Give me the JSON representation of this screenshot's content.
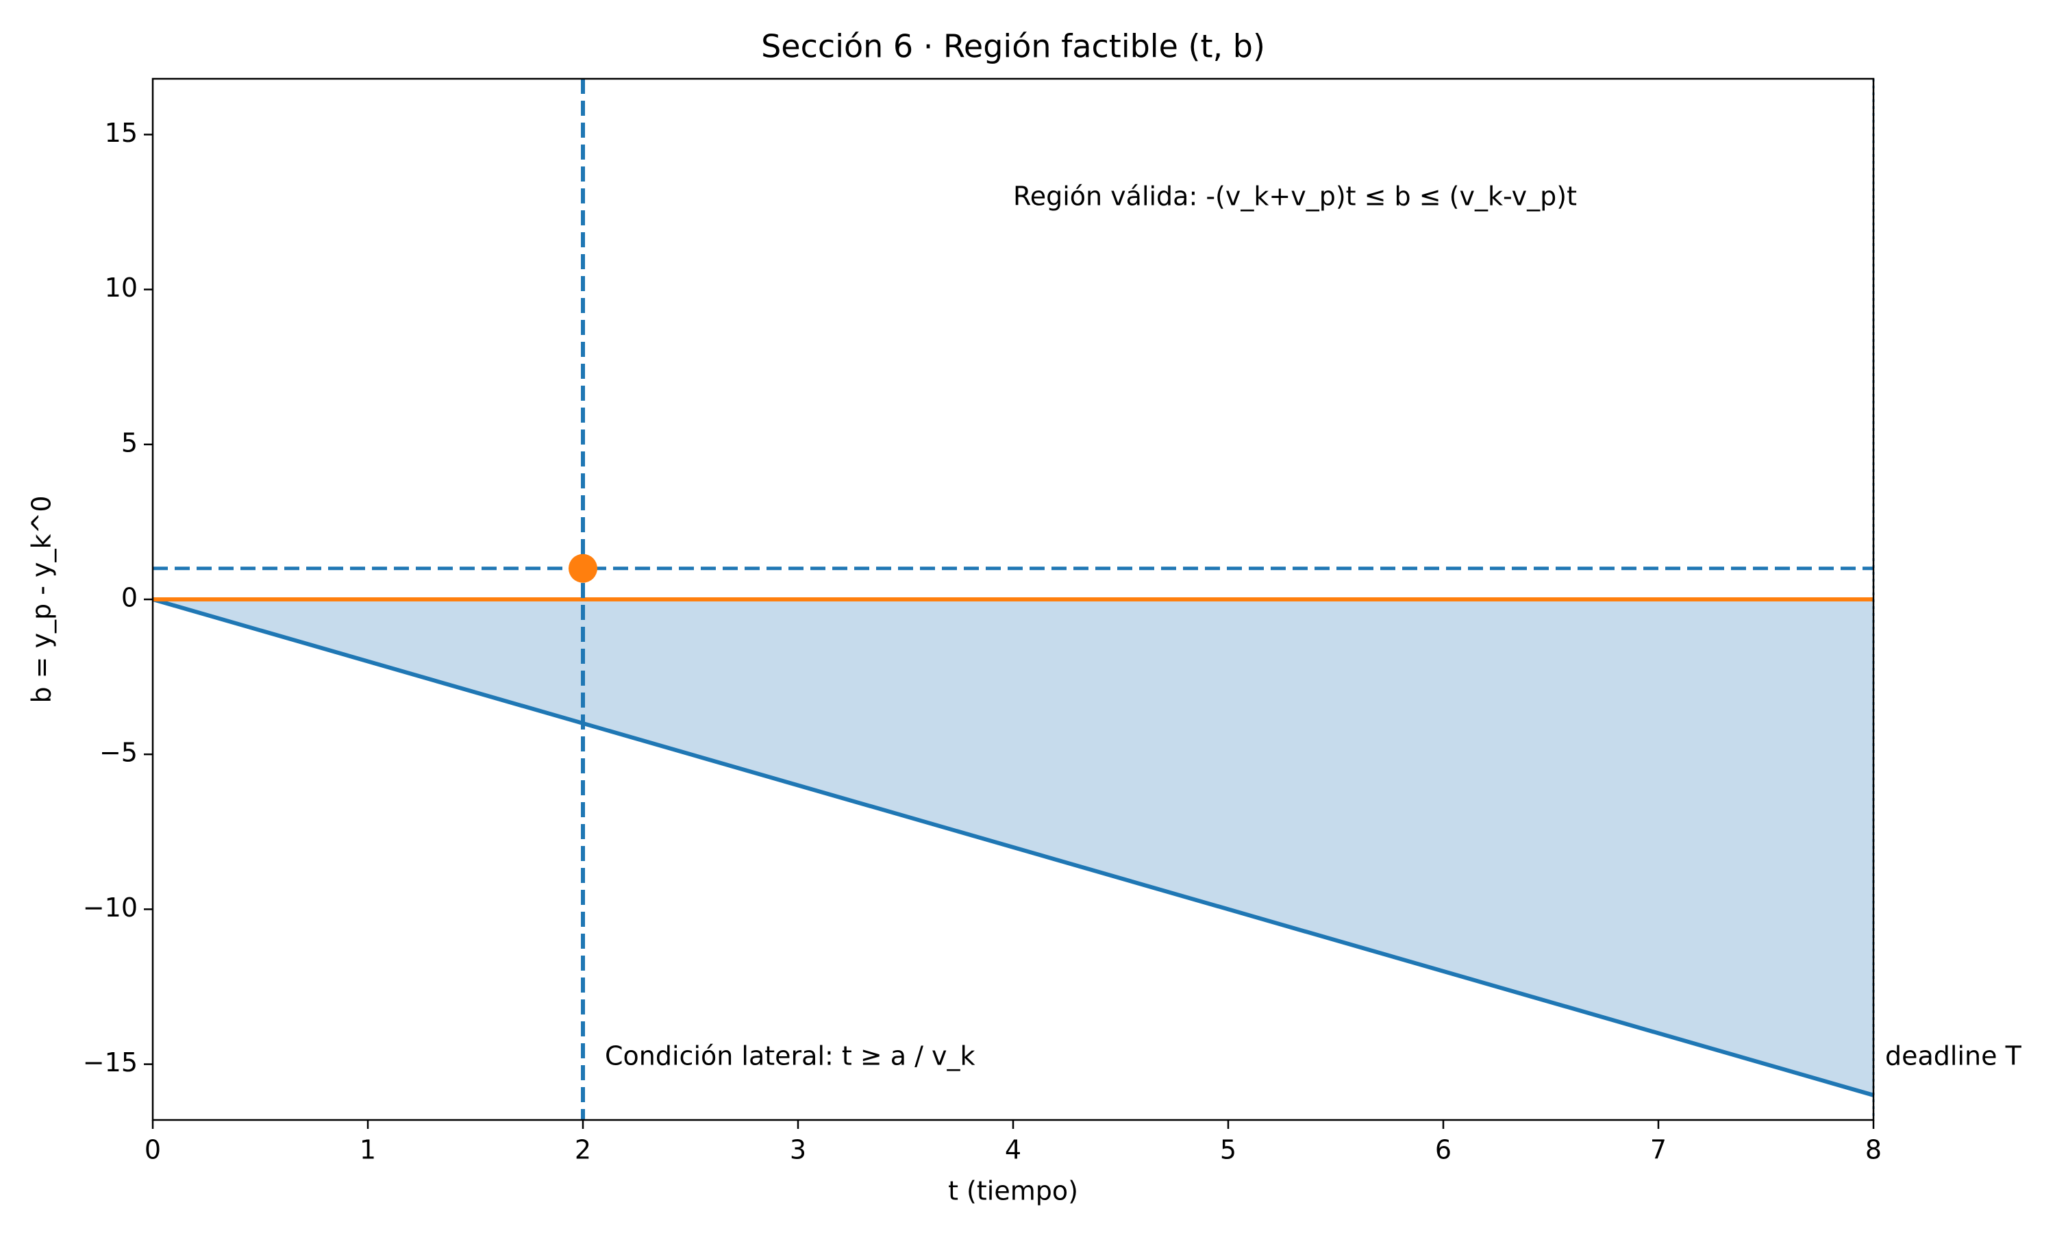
{
  "chart_data": {
    "type": "line",
    "title": "Sección 6 · Región factible (t, b)",
    "x_label": "t (tiempo)",
    "y_label": "b = y_p - y_k^0",
    "x": [
      0,
      8
    ],
    "series": [
      {
        "color": "#1f77b4",
        "values": [
          0,
          -16
        ]
      },
      {
        "color": "#ff7f0e",
        "values": [
          0,
          0
        ]
      }
    ],
    "fill_between": {
      "color": "#c6dbec"
    },
    "vlines": [
      {
        "x": 2,
        "color": "#1f77b4",
        "style": "dashed"
      },
      {
        "x": 8,
        "color": "#1f77b4",
        "style": "dotted"
      }
    ],
    "hlines": [
      {
        "y": 1,
        "color": "#1f77b4",
        "style": "dashed"
      }
    ],
    "points": [
      {
        "x": 2,
        "y": 1,
        "color": "#ff7f0e"
      }
    ],
    "annotations": [
      "Región válida:  -(v_k+v_p)t ≤ b ≤ (v_k-v_p)t",
      "Condición lateral:  t ≥ a / v_k",
      "deadline T"
    ],
    "xlim": [
      0,
      8
    ],
    "ylim": [
      -16.8,
      16.8
    ],
    "xticks": [
      0,
      1,
      2,
      3,
      4,
      5,
      6,
      7,
      8
    ],
    "yticks": [
      {
        "value": -15,
        "label": "−15"
      },
      {
        "value": -10,
        "label": "−10"
      },
      {
        "value": -5,
        "label": "−5"
      },
      0,
      5,
      10,
      15
    ],
    "grid": false
  }
}
